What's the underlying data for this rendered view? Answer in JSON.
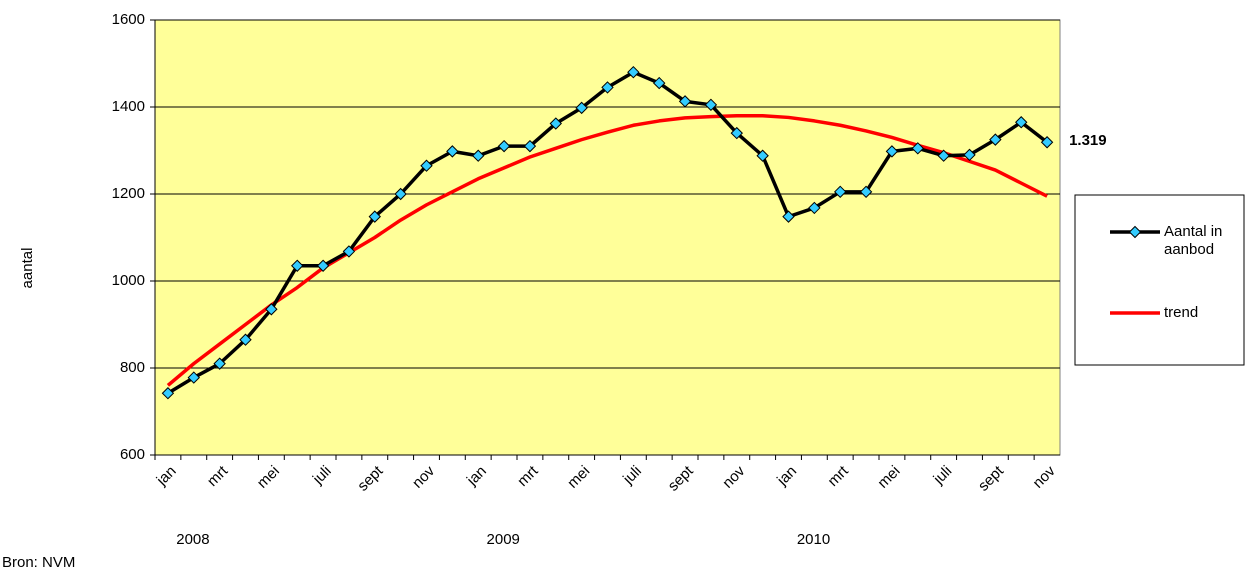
{
  "chart_data": {
    "type": "line",
    "y_label": "aantal",
    "source": "Bron: NVM",
    "categories": [
      "jan",
      null,
      "mrt",
      null,
      "mei",
      null,
      "juli",
      null,
      "sept",
      null,
      "nov",
      null,
      "jan",
      null,
      "mrt",
      null,
      "mei",
      null,
      "juli",
      null,
      "sept",
      null,
      "nov",
      null,
      "jan",
      null,
      "mrt",
      null,
      "mei",
      null,
      "juli",
      null,
      "sept",
      null,
      "nov"
    ],
    "years": [
      "2008",
      "2009",
      "2010"
    ],
    "series": [
      {
        "name": "Aantal in aanbod",
        "color": "#000000",
        "marker_color": "#33ccff",
        "values": [
          742,
          778,
          810,
          865,
          935,
          1035,
          1035,
          1068,
          1148,
          1200,
          1265,
          1298,
          1288,
          1310,
          1310,
          1362,
          1398,
          1445,
          1480,
          1455,
          1413,
          1405,
          1340,
          1288,
          1148,
          1168,
          1205,
          1205,
          1298,
          1305,
          1288,
          1290,
          1325,
          1365,
          1319
        ],
        "value_labels": [
          null,
          null,
          null,
          null,
          null,
          null,
          null,
          null,
          null,
          null,
          null,
          null,
          null,
          null,
          null,
          null,
          null,
          null,
          null,
          null,
          null,
          null,
          null,
          null,
          null,
          null,
          null,
          null,
          null,
          null,
          null,
          null,
          null,
          null,
          "1.319"
        ]
      },
      {
        "name": "trend",
        "color": "#ff0000",
        "values": [
          760,
          810,
          855,
          900,
          945,
          985,
          1030,
          1065,
          1100,
          1140,
          1175,
          1205,
          1235,
          1260,
          1285,
          1305,
          1325,
          1342,
          1358,
          1368,
          1375,
          1378,
          1380,
          1380,
          1376,
          1368,
          1358,
          1345,
          1330,
          1312,
          1295,
          1275,
          1255,
          1225,
          1195
        ]
      }
    ],
    "ylim": [
      600,
      1600
    ],
    "yticks": [
      600,
      800,
      1000,
      1200,
      1400,
      1600
    ],
    "grid": true,
    "plot_color": "#ffff99",
    "legend": "right"
  }
}
